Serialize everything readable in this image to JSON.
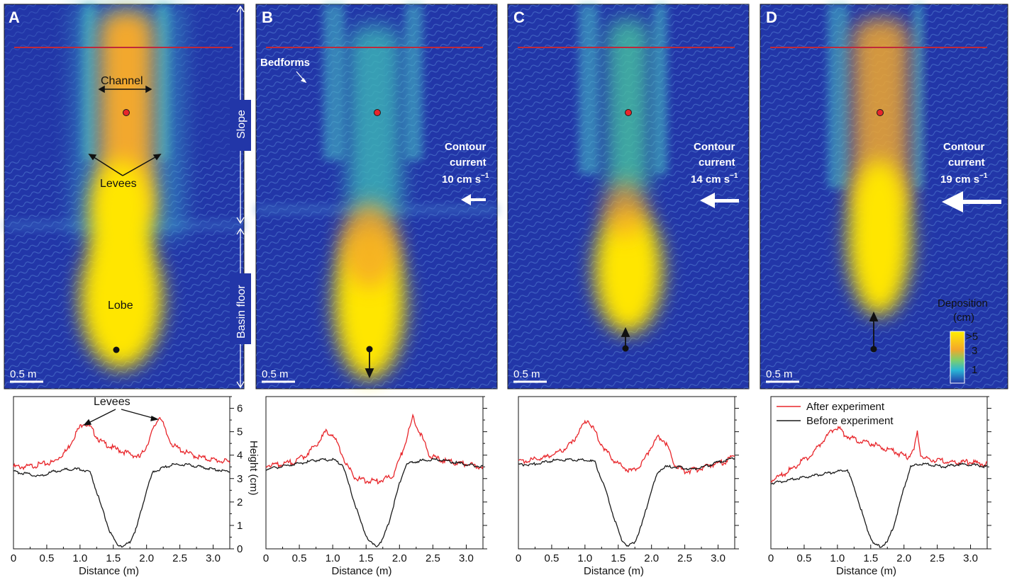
{
  "panels": [
    {
      "label": "A",
      "scale_bar": "0.5 m",
      "current": null
    },
    {
      "label": "B",
      "scale_bar": "0.5 m",
      "current": {
        "line1": "Contour",
        "line2": "current",
        "speed": "10 cm s",
        "exp": "−1",
        "arrow_strength": 1
      }
    },
    {
      "label": "C",
      "scale_bar": "0.5 m",
      "current": {
        "line1": "Contour",
        "line2": "current",
        "speed": "14 cm s",
        "exp": "−1",
        "arrow_strength": 2
      }
    },
    {
      "label": "D",
      "scale_bar": "0.5 m",
      "current": {
        "line1": "Contour",
        "line2": "current",
        "speed": "19 cm s",
        "exp": "−1",
        "arrow_strength": 3
      }
    }
  ],
  "annotations": {
    "channel": "Channel",
    "levees": "Levees",
    "lobe": "Lobe",
    "slope": "Slope",
    "basin_floor": "Basin floor",
    "bedforms": "Bedforms"
  },
  "colorbar": {
    "title_line1": "Deposition",
    "title_line2": "(cm)",
    "ticks": [
      ">5",
      "3",
      "1"
    ]
  },
  "profile_annotation": "Levees",
  "colors": {
    "after": "#e8262b",
    "before": "#1a1a1a",
    "red_line": "#c0293a",
    "map_low": "#2236a8",
    "map_high": "#ffee00"
  },
  "chart_data": [
    {
      "type": "line",
      "panel": "A",
      "xlabel": "Distance (m)",
      "ylabel": "Height (cm)",
      "xlim": [
        0,
        3.25
      ],
      "ylim": [
        0,
        6.5
      ],
      "xticks": [
        "0",
        "0.5",
        "1.0",
        "1.5",
        "2.0",
        "2.5",
        "3.0"
      ],
      "yticks": [
        "0",
        "1",
        "2",
        "3",
        "4",
        "5",
        "6"
      ],
      "series": [
        {
          "role": "after",
          "x": [
            0,
            0.2,
            0.4,
            0.6,
            0.8,
            0.95,
            1.05,
            1.15,
            1.3,
            1.5,
            1.7,
            1.9,
            2.0,
            2.1,
            2.2,
            2.3,
            2.4,
            2.6,
            2.8,
            3.0,
            3.25
          ],
          "y": [
            3.5,
            3.5,
            3.6,
            3.7,
            4.2,
            5.0,
            5.4,
            5.2,
            4.6,
            4.3,
            4.1,
            3.9,
            4.4,
            5.1,
            5.7,
            4.9,
            4.4,
            4.1,
            3.9,
            3.8,
            3.7
          ]
        },
        {
          "role": "before",
          "x": [
            0,
            0.2,
            0.4,
            0.6,
            0.8,
            1.0,
            1.15,
            1.3,
            1.45,
            1.55,
            1.65,
            1.75,
            1.85,
            2.0,
            2.1,
            2.2,
            2.4,
            2.6,
            2.8,
            3.0,
            3.25
          ],
          "y": [
            3.3,
            3.2,
            3.1,
            3.3,
            3.4,
            3.4,
            3.3,
            2.0,
            0.7,
            0.2,
            0.1,
            0.3,
            0.9,
            2.5,
            3.3,
            3.4,
            3.6,
            3.6,
            3.5,
            3.4,
            3.3
          ]
        }
      ]
    },
    {
      "type": "line",
      "panel": "B",
      "xlabel": "Distance (m)",
      "xlim": [
        0,
        3.25
      ],
      "ylim": [
        0,
        6.5
      ],
      "xticks": [
        "0",
        "0.5",
        "1.0",
        "1.5",
        "2.0",
        "2.5",
        "3.0"
      ],
      "series": [
        {
          "role": "after",
          "x": [
            0,
            0.2,
            0.4,
            0.6,
            0.8,
            0.9,
            1.0,
            1.1,
            1.2,
            1.35,
            1.5,
            1.7,
            1.9,
            2.05,
            2.2,
            2.3,
            2.45,
            2.6,
            2.8,
            3.0,
            3.25
          ],
          "y": [
            3.6,
            3.6,
            3.7,
            4.0,
            4.6,
            5.0,
            4.9,
            4.3,
            3.6,
            3.0,
            2.9,
            2.9,
            3.1,
            4.2,
            5.6,
            5.0,
            4.0,
            3.8,
            3.7,
            3.6,
            3.5
          ]
        },
        {
          "role": "before",
          "x": [
            0,
            0.2,
            0.4,
            0.6,
            0.8,
            1.0,
            1.15,
            1.3,
            1.45,
            1.55,
            1.65,
            1.75,
            1.85,
            2.0,
            2.1,
            2.2,
            2.4,
            2.6,
            2.8,
            3.0,
            3.25
          ],
          "y": [
            3.4,
            3.5,
            3.6,
            3.7,
            3.8,
            3.8,
            3.6,
            2.2,
            0.9,
            0.3,
            0.1,
            0.4,
            1.2,
            2.8,
            3.6,
            3.7,
            3.8,
            3.8,
            3.7,
            3.6,
            3.5
          ]
        }
      ]
    },
    {
      "type": "line",
      "panel": "C",
      "xlabel": "Distance (m)",
      "xlim": [
        0,
        3.25
      ],
      "ylim": [
        0,
        6.5
      ],
      "xticks": [
        "0",
        "0.5",
        "1.0",
        "1.5",
        "2.0",
        "2.5",
        "3.0"
      ],
      "series": [
        {
          "role": "after",
          "x": [
            0,
            0.2,
            0.4,
            0.6,
            0.8,
            0.95,
            1.05,
            1.15,
            1.3,
            1.5,
            1.7,
            1.85,
            2.0,
            2.1,
            2.2,
            2.35,
            2.5,
            2.7,
            2.9,
            3.1,
            3.25
          ],
          "y": [
            3.7,
            3.8,
            3.9,
            4.1,
            4.5,
            5.2,
            5.5,
            5.0,
            4.2,
            3.6,
            3.3,
            3.6,
            4.4,
            4.8,
            4.6,
            3.6,
            3.3,
            3.4,
            3.6,
            3.7,
            4.0
          ]
        },
        {
          "role": "before",
          "x": [
            0,
            0.2,
            0.4,
            0.6,
            0.8,
            1.0,
            1.15,
            1.3,
            1.45,
            1.55,
            1.65,
            1.75,
            1.85,
            2.0,
            2.1,
            2.2,
            2.4,
            2.6,
            2.8,
            3.0,
            3.25
          ],
          "y": [
            3.6,
            3.6,
            3.7,
            3.8,
            3.8,
            3.8,
            3.7,
            2.6,
            1.2,
            0.4,
            0.1,
            0.3,
            1.0,
            2.5,
            3.3,
            3.5,
            3.5,
            3.4,
            3.5,
            3.7,
            3.9
          ]
        }
      ]
    },
    {
      "type": "line",
      "panel": "D",
      "xlabel": "Distance (m)",
      "xlim": [
        0,
        3.25
      ],
      "ylim": [
        0,
        6.5
      ],
      "xticks": [
        "0",
        "0.5",
        "1.0",
        "1.5",
        "2.0",
        "2.5",
        "3.0"
      ],
      "legend": [
        "After experiment",
        "Before experiment"
      ],
      "legend_position": "top-left",
      "series": [
        {
          "role": "after",
          "name": "After experiment",
          "x": [
            0,
            0.2,
            0.4,
            0.6,
            0.75,
            0.9,
            1.0,
            1.1,
            1.3,
            1.5,
            1.7,
            1.9,
            2.05,
            2.15,
            2.2,
            2.25,
            2.35,
            2.5,
            2.7,
            3.0,
            3.25
          ],
          "y": [
            2.9,
            3.2,
            3.6,
            4.0,
            4.5,
            5.0,
            5.2,
            4.9,
            4.6,
            4.5,
            4.3,
            4.1,
            3.9,
            4.2,
            5.0,
            4.0,
            3.8,
            3.8,
            3.7,
            3.7,
            3.6
          ]
        },
        {
          "role": "before",
          "name": "Before experiment",
          "x": [
            0,
            0.2,
            0.4,
            0.6,
            0.8,
            1.0,
            1.15,
            1.3,
            1.45,
            1.55,
            1.65,
            1.75,
            1.85,
            2.0,
            2.1,
            2.2,
            2.4,
            2.6,
            2.8,
            3.0,
            3.25
          ],
          "y": [
            2.8,
            2.9,
            3.0,
            3.1,
            3.2,
            3.3,
            3.4,
            2.2,
            0.8,
            0.2,
            0.1,
            0.3,
            1.0,
            2.6,
            3.5,
            3.6,
            3.6,
            3.5,
            3.6,
            3.6,
            3.5
          ]
        }
      ]
    }
  ]
}
